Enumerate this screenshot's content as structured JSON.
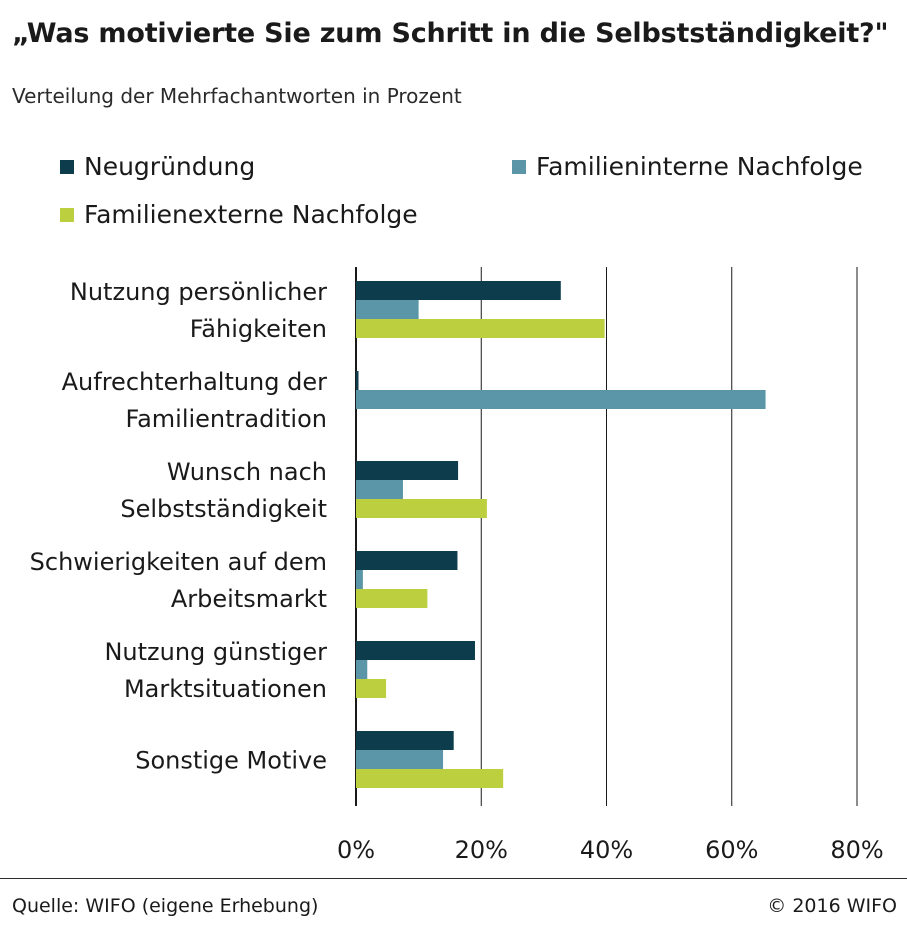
{
  "header": {
    "title": "„Was motivierte Sie zum Schritt in die Selbstständigkeit?\"",
    "subtitle": "Verteilung der Mehrfachantworten in Prozent"
  },
  "colors": {
    "neugruendung": "#0d3d4d",
    "familieninterne": "#5a96a8",
    "familienexterne": "#bccf3f",
    "gridline": "#1a1a1a",
    "text": "#1a1a1a"
  },
  "footer": {
    "source": "Quelle:  WIFO (eigene Erhebung)",
    "copyright": "© 2016 WIFO"
  },
  "chart_data": {
    "type": "bar",
    "orientation": "horizontal",
    "categories": [
      [
        "Nutzung persönlicher",
        "Fähigkeiten"
      ],
      [
        "Aufrechterhaltung der",
        "Familientradition"
      ],
      [
        "Wunsch nach",
        "Selbstständigkeit"
      ],
      [
        "Schwierigkeiten auf dem",
        "Arbeitsmarkt"
      ],
      [
        "Nutzung günstiger",
        "Marktsituationen"
      ],
      [
        "Sonstige Motive"
      ]
    ],
    "series": [
      {
        "name": "Neugründung",
        "color_key": "neugruendung",
        "values": [
          32.7,
          0.4,
          16.3,
          16.2,
          19.0,
          15.6
        ]
      },
      {
        "name": "Familieninterne Nachfolge",
        "color_key": "familieninterne",
        "values": [
          10.0,
          65.4,
          7.5,
          1.1,
          1.8,
          13.9
        ]
      },
      {
        "name": "Familienexterne Nachfolge",
        "color_key": "familienexterne",
        "values": [
          39.7,
          0,
          20.9,
          11.4,
          4.8,
          23.5
        ]
      }
    ],
    "xlim": [
      0,
      80
    ],
    "ticks": [
      0,
      20,
      40,
      60,
      80
    ],
    "tick_labels": [
      "0%",
      "20%",
      "40%",
      "60%",
      "80%"
    ],
    "grid": true,
    "legend_position": "top"
  }
}
